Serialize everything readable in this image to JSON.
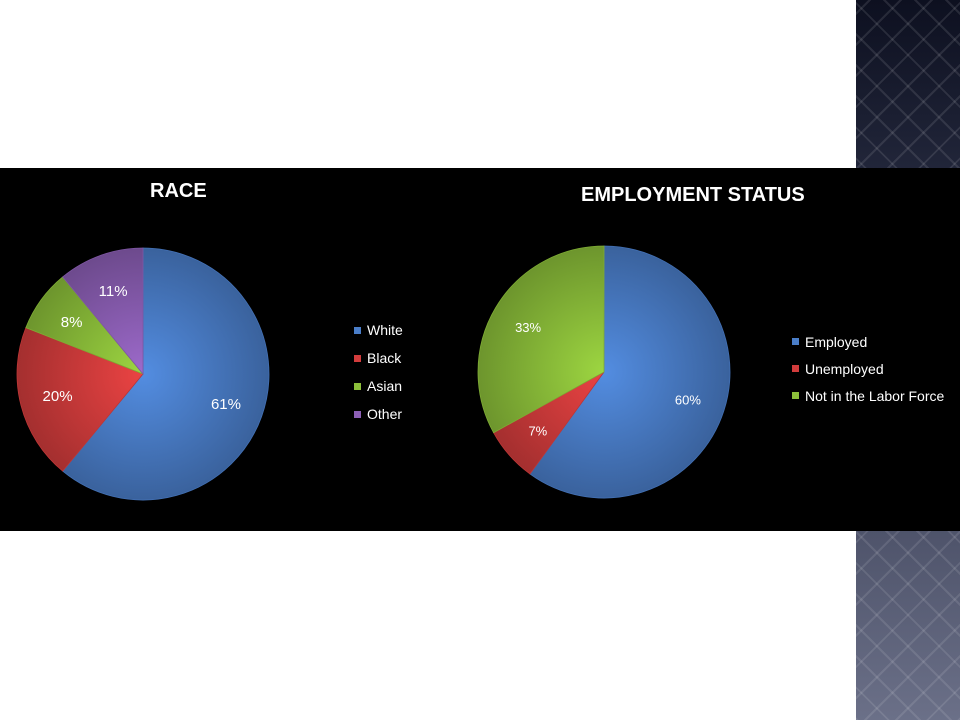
{
  "chart_data": [
    {
      "type": "pie",
      "title": "RACE",
      "categories": [
        "White",
        "Black",
        "Asian",
        "Other"
      ],
      "values": [
        61,
        20,
        8,
        11
      ],
      "labels": [
        "61%",
        "20%",
        "8%",
        "11%"
      ],
      "colors": [
        "#4a7ec9",
        "#d23c3c",
        "#8cbf3a",
        "#8c5fb5"
      ],
      "legend": "right"
    },
    {
      "type": "pie",
      "title": "EMPLOYMENT STATUS",
      "categories": [
        "Employed",
        "Unemployed",
        "Not in the Labor Force"
      ],
      "values": [
        60,
        7,
        33
      ],
      "labels": [
        "60%",
        "7%",
        "33%"
      ],
      "colors": [
        "#4a7ec9",
        "#d23c3c",
        "#8cbf3a"
      ],
      "legend": "right"
    }
  ]
}
